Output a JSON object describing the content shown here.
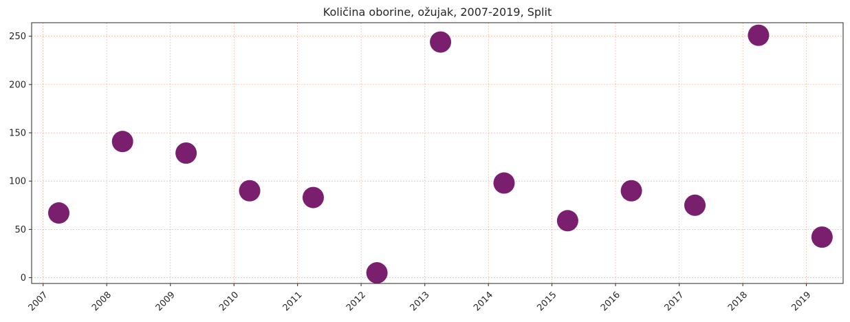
{
  "chart_data": {
    "type": "scatter",
    "title": "Količina oborine, ožujak, 2007-2019, Split",
    "xlabel": "",
    "ylabel": "",
    "x": [
      "2007-04-01",
      "2008-04-01",
      "2009-04-01",
      "2010-04-01",
      "2011-04-01",
      "2012-04-01",
      "2013-04-01",
      "2014-04-01",
      "2015-04-01",
      "2016-04-01",
      "2017-04-01",
      "2018-04-01",
      "2019-04-01"
    ],
    "y": [
      67,
      141,
      129,
      90,
      83,
      5,
      244,
      98,
      59,
      90,
      75,
      251,
      42
    ],
    "xlim": [
      "2006-10-27",
      "2019-07-31"
    ],
    "ylim": [
      -6,
      264
    ],
    "x_ticks": [
      "2007",
      "2008",
      "2009",
      "2010",
      "2011",
      "2012",
      "2013",
      "2014",
      "2015",
      "2016",
      "2017",
      "2018",
      "2019"
    ],
    "y_ticks": [
      0,
      50,
      100,
      150,
      200,
      250
    ],
    "grid": true,
    "marker_color": "#7a1f6e",
    "grid_color": "#f4a582"
  }
}
